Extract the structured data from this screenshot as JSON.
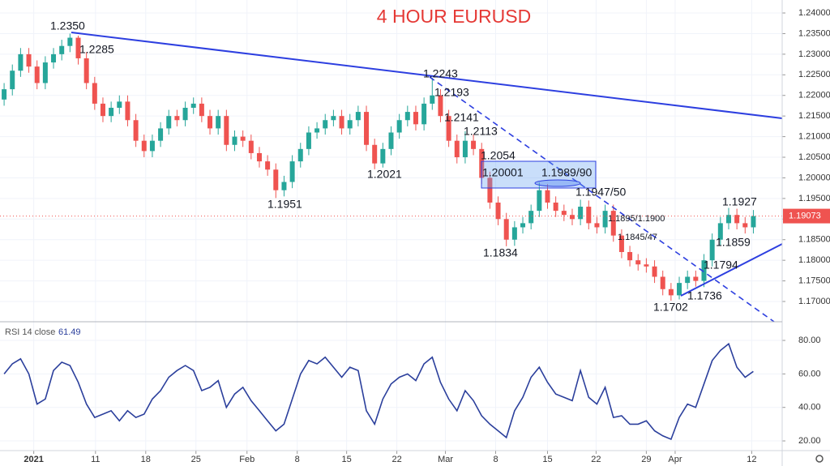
{
  "chart_data": [
    {
      "type": "candlestick",
      "title": "4 HOUR EURUSD",
      "up_color": "#26a69a",
      "down_color": "#ef5350",
      "grid": true,
      "open": [
        1.219,
        1.2215,
        1.226,
        1.23,
        1.227,
        1.223,
        1.228,
        1.23,
        1.232,
        1.234,
        1.229,
        1.223,
        1.218,
        1.215,
        1.217,
        1.2185,
        1.214,
        1.209,
        1.2065,
        1.209,
        1.212,
        1.215,
        1.214,
        1.217,
        1.218,
        1.215,
        1.212,
        1.215,
        1.208,
        1.21,
        1.209,
        1.206,
        1.204,
        1.202,
        1.197,
        1.199,
        1.204,
        1.207,
        1.211,
        1.212,
        1.214,
        1.215,
        1.212,
        1.214,
        1.216,
        1.208,
        1.2035,
        1.207,
        1.211,
        1.214,
        1.216,
        1.213,
        1.218,
        1.22,
        1.215,
        1.209,
        1.205,
        1.209,
        1.207,
        1.2,
        1.194,
        1.19,
        1.185,
        1.188,
        1.189,
        1.192,
        1.197,
        1.194,
        1.192,
        1.191,
        1.19,
        1.193,
        1.189,
        1.188,
        1.192,
        1.186,
        1.182,
        1.18,
        1.179,
        1.1785,
        1.176,
        1.173,
        1.1715,
        1.1745,
        1.176,
        1.175,
        1.18,
        1.185,
        1.189,
        1.191,
        1.189,
        1.188
      ],
      "high": [
        1.223,
        1.2275,
        1.2315,
        1.2315,
        1.2285,
        1.2295,
        1.2315,
        1.2335,
        1.235,
        1.2345,
        1.2305,
        1.2245,
        1.2195,
        1.2185,
        1.22,
        1.22,
        1.2155,
        1.2105,
        1.2105,
        1.2135,
        1.2165,
        1.2165,
        1.2185,
        1.2195,
        1.2195,
        1.2165,
        1.2165,
        1.2165,
        1.2115,
        1.2115,
        1.2105,
        1.2075,
        1.2055,
        1.2035,
        1.2005,
        1.2055,
        1.2085,
        1.2125,
        1.2135,
        1.2155,
        1.2165,
        1.2165,
        1.2155,
        1.2175,
        1.2175,
        1.2095,
        1.2085,
        1.2125,
        1.2155,
        1.2175,
        1.2175,
        1.2195,
        1.2243,
        1.2215,
        1.2165,
        1.2105,
        1.2113,
        1.2105,
        1.2085,
        1.2015,
        1.1955,
        1.1915,
        1.1895,
        1.1905,
        1.1935,
        1.1989,
        1.1985,
        1.1955,
        1.1935,
        1.1925,
        1.1947,
        1.1945,
        1.1905,
        1.1935,
        1.1935,
        1.1875,
        1.1835,
        1.1815,
        1.1805,
        1.18,
        1.1775,
        1.1745,
        1.176,
        1.1775,
        1.1775,
        1.1815,
        1.1865,
        1.1905,
        1.1927,
        1.1925,
        1.1905,
        1.1922
      ],
      "low": [
        1.2175,
        1.22,
        1.2245,
        1.2255,
        1.2215,
        1.2215,
        1.2265,
        1.2285,
        1.2305,
        1.2275,
        1.2215,
        1.2165,
        1.2135,
        1.2135,
        1.2155,
        1.2125,
        1.2075,
        1.205,
        1.205,
        1.2075,
        1.2105,
        1.2125,
        1.2125,
        1.2155,
        1.2135,
        1.2105,
        1.2105,
        1.2065,
        1.2065,
        1.2075,
        1.2045,
        1.2025,
        1.2005,
        1.1951,
        1.1955,
        1.1975,
        1.2025,
        1.2055,
        1.2095,
        1.2105,
        1.2125,
        1.2105,
        1.2105,
        1.2125,
        1.2065,
        1.2021,
        1.2025,
        1.2055,
        1.2095,
        1.2125,
        1.2115,
        1.2115,
        1.2165,
        1.2135,
        1.2075,
        1.2035,
        1.2035,
        1.2055,
        1.1985,
        1.1925,
        1.1885,
        1.1834,
        1.1835,
        1.1865,
        1.1875,
        1.1905,
        1.1925,
        1.1905,
        1.1895,
        1.1885,
        1.1885,
        1.1875,
        1.1865,
        1.1865,
        1.1845,
        1.1805,
        1.1785,
        1.1775,
        1.177,
        1.1745,
        1.1715,
        1.1702,
        1.1705,
        1.173,
        1.1736,
        1.1735,
        1.1785,
        1.1835,
        1.1875,
        1.1875,
        1.1865,
        1.1865
      ],
      "close": [
        1.2215,
        1.226,
        1.23,
        1.227,
        1.223,
        1.228,
        1.23,
        1.232,
        1.234,
        1.229,
        1.223,
        1.218,
        1.215,
        1.217,
        1.2185,
        1.214,
        1.209,
        1.2065,
        1.209,
        1.212,
        1.215,
        1.214,
        1.217,
        1.218,
        1.215,
        1.212,
        1.215,
        1.208,
        1.21,
        1.209,
        1.206,
        1.204,
        1.202,
        1.197,
        1.199,
        1.204,
        1.207,
        1.211,
        1.212,
        1.214,
        1.215,
        1.212,
        1.214,
        1.216,
        1.208,
        1.2035,
        1.207,
        1.211,
        1.214,
        1.216,
        1.213,
        1.218,
        1.22,
        1.215,
        1.209,
        1.205,
        1.209,
        1.207,
        1.2,
        1.194,
        1.19,
        1.185,
        1.188,
        1.189,
        1.192,
        1.197,
        1.194,
        1.192,
        1.191,
        1.19,
        1.193,
        1.189,
        1.188,
        1.192,
        1.186,
        1.182,
        1.18,
        1.179,
        1.1785,
        1.176,
        1.173,
        1.1715,
        1.1745,
        1.176,
        1.175,
        1.18,
        1.185,
        1.189,
        1.191,
        1.189,
        1.188,
        1.19073
      ],
      "xlim": [
        -0.5,
        94.5
      ],
      "xticks": [
        {
          "value": 3.6,
          "label": "2021"
        },
        {
          "value": 11.1,
          "label": "11"
        },
        {
          "value": 17.2,
          "label": "18"
        },
        {
          "value": 23.3,
          "label": "25"
        },
        {
          "value": 29.5,
          "label": "Feb"
        },
        {
          "value": 35.6,
          "label": "8"
        },
        {
          "value": 41.6,
          "label": "15"
        },
        {
          "value": 47.7,
          "label": "22"
        },
        {
          "value": 53.6,
          "label": "Mar"
        },
        {
          "value": 59.7,
          "label": "8"
        },
        {
          "value": 66.0,
          "label": "15"
        },
        {
          "value": 71.9,
          "label": "22"
        },
        {
          "value": 78.0,
          "label": "29"
        },
        {
          "value": 81.5,
          "label": "Apr"
        },
        {
          "value": 90.8,
          "label": "12"
        }
      ],
      "ylim": [
        1.16548,
        1.24315
      ],
      "yticks": [
        {
          "value": 1.17,
          "label": "1.17000"
        },
        {
          "value": 1.175,
          "label": "1.17500"
        },
        {
          "value": 1.18,
          "label": "1.18000"
        },
        {
          "value": 1.185,
          "label": "1.18500"
        },
        {
          "value": 1.19,
          "label": "1.19000"
        },
        {
          "value": 1.195,
          "label": "1.19500"
        },
        {
          "value": 1.2,
          "label": "1.20000"
        },
        {
          "value": 1.205,
          "label": "1.20500"
        },
        {
          "value": 1.21,
          "label": "1.21000"
        },
        {
          "value": 1.215,
          "label": "1.21500"
        },
        {
          "value": 1.22,
          "label": "1.22000"
        },
        {
          "value": 1.225,
          "label": "1.22500"
        },
        {
          "value": 1.23,
          "label": "1.23000"
        },
        {
          "value": 1.235,
          "label": "1.23500"
        },
        {
          "value": 1.24,
          "label": "1.24000"
        }
      ],
      "annotations": [
        "1.2350",
        "1.2285",
        "1.2243",
        "1.2193",
        "1.2141",
        "1.2113",
        "1.2054",
        "1.20001",
        "1.1989/90",
        "1.1947/50",
        "1.1895/1.1900",
        "1.1845/47",
        "1.1951",
        "1.2021",
        "1.1834",
        "1.1927",
        "1.1859",
        "1.1794",
        "1.1736",
        "1.1702"
      ]
    },
    {
      "type": "line",
      "title": "RSI 14 close",
      "color": "#2b3f9c",
      "values": [
        60,
        66,
        69,
        60,
        42,
        45,
        62,
        67,
        65,
        55,
        42,
        34,
        36,
        38,
        32,
        38,
        34,
        36,
        45,
        50,
        58,
        62,
        65,
        62,
        50,
        52,
        56,
        40,
        48,
        52,
        44,
        38,
        32,
        26,
        30,
        45,
        60,
        68,
        66,
        70,
        64,
        58,
        64,
        62,
        38,
        30,
        45,
        54,
        58,
        60,
        56,
        66,
        70,
        55,
        45,
        38,
        50,
        44,
        35,
        30,
        26,
        22,
        38,
        46,
        58,
        64,
        55,
        48,
        46,
        44,
        62,
        46,
        42,
        52,
        34,
        35,
        30,
        30,
        32,
        26,
        23,
        21,
        34,
        42,
        40,
        54,
        68,
        74,
        78,
        64,
        58,
        61.49
      ],
      "ylim": [
        14.7,
        89.7
      ],
      "yticks": [
        {
          "value": 20,
          "label": "20.00"
        },
        {
          "value": 40,
          "label": "40.00"
        },
        {
          "value": 60,
          "label": "60.00"
        },
        {
          "value": 80,
          "label": "80.00"
        }
      ]
    }
  ]
}
